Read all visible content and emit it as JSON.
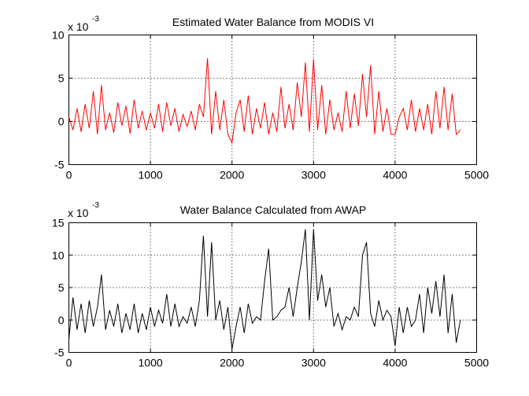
{
  "chart_data": [
    {
      "type": "line",
      "title": "Estimated Water Balance from MODIS VI",
      "xlabel": "",
      "ylabel": "",
      "xlim": [
        0,
        5000
      ],
      "ylim": [
        -5,
        10
      ],
      "xticks": [
        0,
        1000,
        2000,
        3000,
        4000,
        5000
      ],
      "yticks": [
        -5,
        0,
        5,
        10
      ],
      "y_multiplier": {
        "base": "x 10",
        "exponent": "-3"
      },
      "grid": true,
      "color": "#ff0000",
      "series": [
        {
          "x": [
            0,
            50,
            100,
            150,
            200,
            250,
            300,
            350,
            400,
            450,
            500,
            550,
            600,
            650,
            700,
            750,
            800,
            850,
            900,
            950,
            1000,
            1050,
            1100,
            1150,
            1200,
            1250,
            1300,
            1350,
            1400,
            1450,
            1500,
            1550,
            1600,
            1650,
            1700,
            1750,
            1800,
            1850,
            1900,
            1950,
            2000,
            2050,
            2100,
            2150,
            2200,
            2250,
            2300,
            2350,
            2400,
            2450,
            2500,
            2550,
            2600,
            2650,
            2700,
            2750,
            2800,
            2850,
            2900,
            2950,
            3000,
            3050,
            3100,
            3150,
            3200,
            3250,
            3300,
            3350,
            3400,
            3450,
            3500,
            3550,
            3600,
            3650,
            3700,
            3750,
            3800,
            3850,
            3900,
            3950,
            4000,
            4050,
            4100,
            4150,
            4200,
            4250,
            4300,
            4350,
            4400,
            4450,
            4500,
            4550,
            4600,
            4650,
            4700,
            4750,
            4800
          ],
          "values": [
            0.5,
            -1.0,
            1.5,
            -1.2,
            2.0,
            -0.8,
            3.5,
            -1.5,
            4.2,
            -1.0,
            1.0,
            -1.3,
            2.2,
            -0.5,
            1.8,
            -1.4,
            2.5,
            -0.8,
            1.2,
            -1.0,
            1.0,
            -0.8,
            2.0,
            -1.2,
            2.2,
            -0.5,
            1.5,
            -1.2,
            0.8,
            -0.6,
            1.2,
            -1.0,
            2.0,
            0.5,
            7.3,
            -1.5,
            3.5,
            -1.0,
            2.5,
            -1.5,
            -2.5,
            1.0,
            2.5,
            -1.2,
            3.0,
            -1.5,
            1.5,
            -0.8,
            2.2,
            -1.5,
            1.0,
            -1.2,
            4.0,
            -0.8,
            2.0,
            -1.0,
            4.5,
            0.5,
            6.8,
            -1.2,
            7.2,
            -1.0,
            4.2,
            -1.5,
            2.5,
            -1.0,
            1.0,
            -1.2,
            3.5,
            -0.8,
            3.2,
            -0.5,
            5.5,
            0.5,
            6.5,
            -1.5,
            3.5,
            -1.2,
            1.5,
            -1.5,
            -1.5,
            0.5,
            1.5,
            -1.0,
            2.5,
            -1.2,
            1.5,
            -1.0,
            2.0,
            -1.5,
            3.5,
            -0.8,
            4.0,
            -1.0,
            3.2,
            -1.5,
            -1.0
          ]
        }
      ]
    },
    {
      "type": "line",
      "title": "Water Balance Calculated from AWAP",
      "xlabel": "",
      "ylabel": "",
      "xlim": [
        0,
        5000
      ],
      "ylim": [
        -5,
        15
      ],
      "xticks": [
        0,
        1000,
        2000,
        3000,
        4000,
        5000
      ],
      "yticks": [
        -5,
        0,
        5,
        10,
        15
      ],
      "y_multiplier": {
        "base": "x 10",
        "exponent": "-3"
      },
      "grid": true,
      "color": "#000000",
      "series": [
        {
          "x": [
            0,
            50,
            100,
            150,
            200,
            250,
            300,
            350,
            400,
            450,
            500,
            550,
            600,
            650,
            700,
            750,
            800,
            850,
            900,
            950,
            1000,
            1050,
            1100,
            1150,
            1200,
            1250,
            1300,
            1350,
            1400,
            1450,
            1500,
            1550,
            1600,
            1650,
            1700,
            1750,
            1800,
            1850,
            1900,
            1950,
            2000,
            2050,
            2100,
            2150,
            2200,
            2250,
            2300,
            2350,
            2400,
            2450,
            2500,
            2550,
            2600,
            2650,
            2700,
            2750,
            2800,
            2850,
            2900,
            2950,
            3000,
            3050,
            3100,
            3150,
            3200,
            3250,
            3300,
            3350,
            3400,
            3450,
            3500,
            3550,
            3600,
            3650,
            3700,
            3750,
            3800,
            3850,
            3900,
            3950,
            4000,
            4050,
            4100,
            4150,
            4200,
            4250,
            4300,
            4350,
            4400,
            4450,
            4500,
            4550,
            4600,
            4650,
            4700,
            4750,
            4800
          ],
          "values": [
            -3.0,
            3.5,
            -1.5,
            2.5,
            -2.0,
            3.0,
            -1.0,
            2.0,
            7.0,
            -1.5,
            1.5,
            -1.0,
            2.5,
            -2.0,
            1.0,
            -1.5,
            2.5,
            -2.0,
            1.0,
            -1.5,
            2.0,
            -1.0,
            1.5,
            -0.5,
            4.0,
            -1.0,
            2.5,
            -1.0,
            0.5,
            -0.5,
            2.0,
            -1.0,
            3.0,
            13.0,
            0.5,
            12.0,
            0.0,
            3.0,
            -1.5,
            2.0,
            -4.5,
            -1.0,
            2.0,
            -2.0,
            2.5,
            -0.5,
            0.5,
            0.0,
            6.0,
            11.0,
            0.0,
            0.5,
            1.5,
            2.0,
            5.0,
            0.5,
            5.0,
            9.0,
            14.0,
            0.0,
            14.0,
            3.0,
            7.0,
            2.0,
            5.0,
            -1.0,
            1.0,
            -1.5,
            0.5,
            0.0,
            2.0,
            0.5,
            10.0,
            12.0,
            1.0,
            -1.0,
            3.0,
            0.0,
            1.5,
            0.5,
            -4.0,
            2.0,
            -2.0,
            2.0,
            -1.0,
            0.0,
            4.0,
            -2.0,
            5.0,
            1.0,
            6.0,
            0.5,
            7.0,
            -2.0,
            4.0,
            -3.5,
            0.0
          ]
        }
      ]
    }
  ]
}
